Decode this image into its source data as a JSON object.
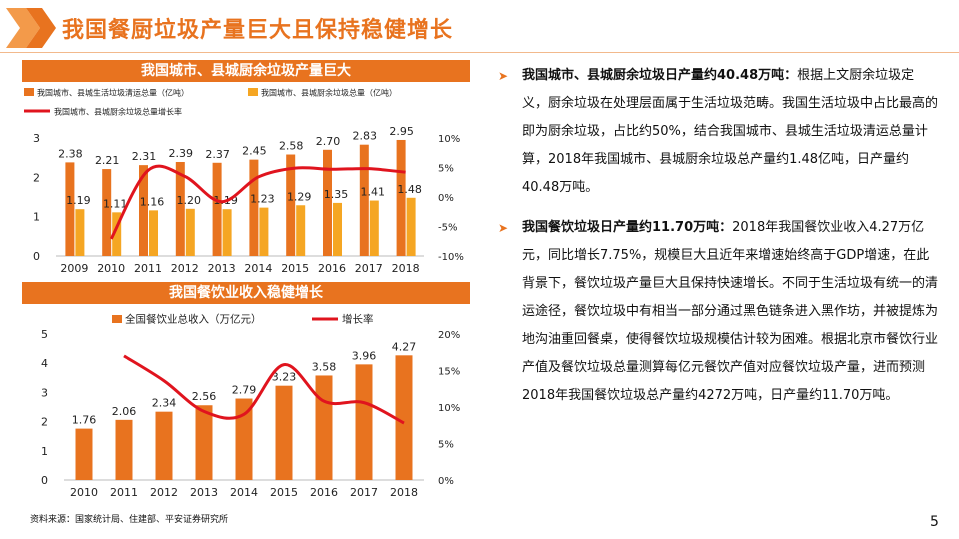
{
  "page": {
    "title": "我国餐厨垃圾产量巨大且保持稳健增长",
    "source": "资料来源：国家统计局、住建部、平安证券研究所",
    "page_number": "5"
  },
  "colors": {
    "orange": "#e8731f",
    "gold": "#f5a623",
    "red": "#e0141e"
  },
  "bullets": [
    {
      "lead": "我国城市、县城厨余垃圾日产量约40.48万吨：",
      "text": "根据上文厨余垃圾定义，厨余垃圾在处理层面属于生活垃圾范畴。我国生活垃圾中占比最高的即为厨余垃圾，占比约50%，结合我国城市、县城生活垃圾清运总量计算，2018年我国城市、县城厨余垃圾总产量约1.48亿吨，日产量约40.48万吨。"
    },
    {
      "lead": "我国餐饮垃圾日产量约11.70万吨：",
      "text": "2018年我国餐饮业收入4.27万亿元，同比增长7.75%，规模巨大且近年来增速始终高于GDP增速，在此背景下，餐饮垃圾产量巨大且保持快速增长。不同于生活垃圾有统一的清运途径，餐饮垃圾中有相当一部分通过黑色链条进入黑作坊，并被提炼为地沟油重回餐桌，使得餐饮垃圾规模估计较为困难。根据北京市餐饮行业产值及餐饮垃圾总量测算每亿元餐饮产值对应餐饮垃圾产量，进而预测2018年我国餐饮垃圾总产量约4272万吨，日产量约11.70万吨。"
    }
  ],
  "chart_data": [
    {
      "type": "bar",
      "title": "我国城市、县城厨余垃圾产量巨大",
      "categories": [
        "2009",
        "2010",
        "2011",
        "2012",
        "2013",
        "2014",
        "2015",
        "2016",
        "2017",
        "2018"
      ],
      "series": [
        {
          "name": "我国城市、县城生活垃圾清运总量（亿吨）",
          "type": "bar",
          "axis": "left",
          "values": [
            2.38,
            2.21,
            2.31,
            2.39,
            2.37,
            2.45,
            2.58,
            2.7,
            2.83,
            2.95
          ]
        },
        {
          "name": "我国城市、县城厨余垃圾总量（亿吨）",
          "type": "bar",
          "axis": "left",
          "values": [
            1.19,
            1.11,
            1.16,
            1.2,
            1.19,
            1.23,
            1.29,
            1.35,
            1.41,
            1.48
          ]
        },
        {
          "name": "我国城市、县城厨余垃圾总量增长率",
          "type": "line",
          "axis": "right",
          "values": [
            null,
            -7.1,
            4.5,
            3.5,
            -0.8,
            3.4,
            4.9,
            4.7,
            4.8,
            4.2
          ]
        }
      ],
      "ylim": [
        0,
        3
      ],
      "yticks": [
        "0",
        "1",
        "2",
        "3"
      ],
      "y2lim": [
        -10,
        10
      ],
      "y2ticks": [
        "-10%",
        "-5%",
        "0%",
        "5%",
        "10%"
      ],
      "grid": false,
      "legend": "top"
    },
    {
      "type": "bar",
      "title": "我国餐饮业收入稳健增长",
      "categories": [
        "2010",
        "2011",
        "2012",
        "2013",
        "2014",
        "2015",
        "2016",
        "2017",
        "2018"
      ],
      "series": [
        {
          "name": "全国餐饮业总收入（万亿元）",
          "type": "bar",
          "axis": "left",
          "values": [
            1.76,
            2.06,
            2.34,
            2.56,
            2.79,
            3.23,
            3.58,
            3.96,
            4.27
          ]
        },
        {
          "name": "增长率",
          "type": "line",
          "axis": "right",
          "values": [
            null,
            17.0,
            13.6,
            9.4,
            9.0,
            15.8,
            10.8,
            10.6,
            7.8
          ]
        }
      ],
      "ylim": [
        0,
        5
      ],
      "yticks": [
        "0",
        "1",
        "2",
        "3",
        "4",
        "5"
      ],
      "y2lim": [
        0,
        20
      ],
      "y2ticks": [
        "0%",
        "5%",
        "10%",
        "15%",
        "20%"
      ],
      "grid": false,
      "legend": "top"
    }
  ]
}
